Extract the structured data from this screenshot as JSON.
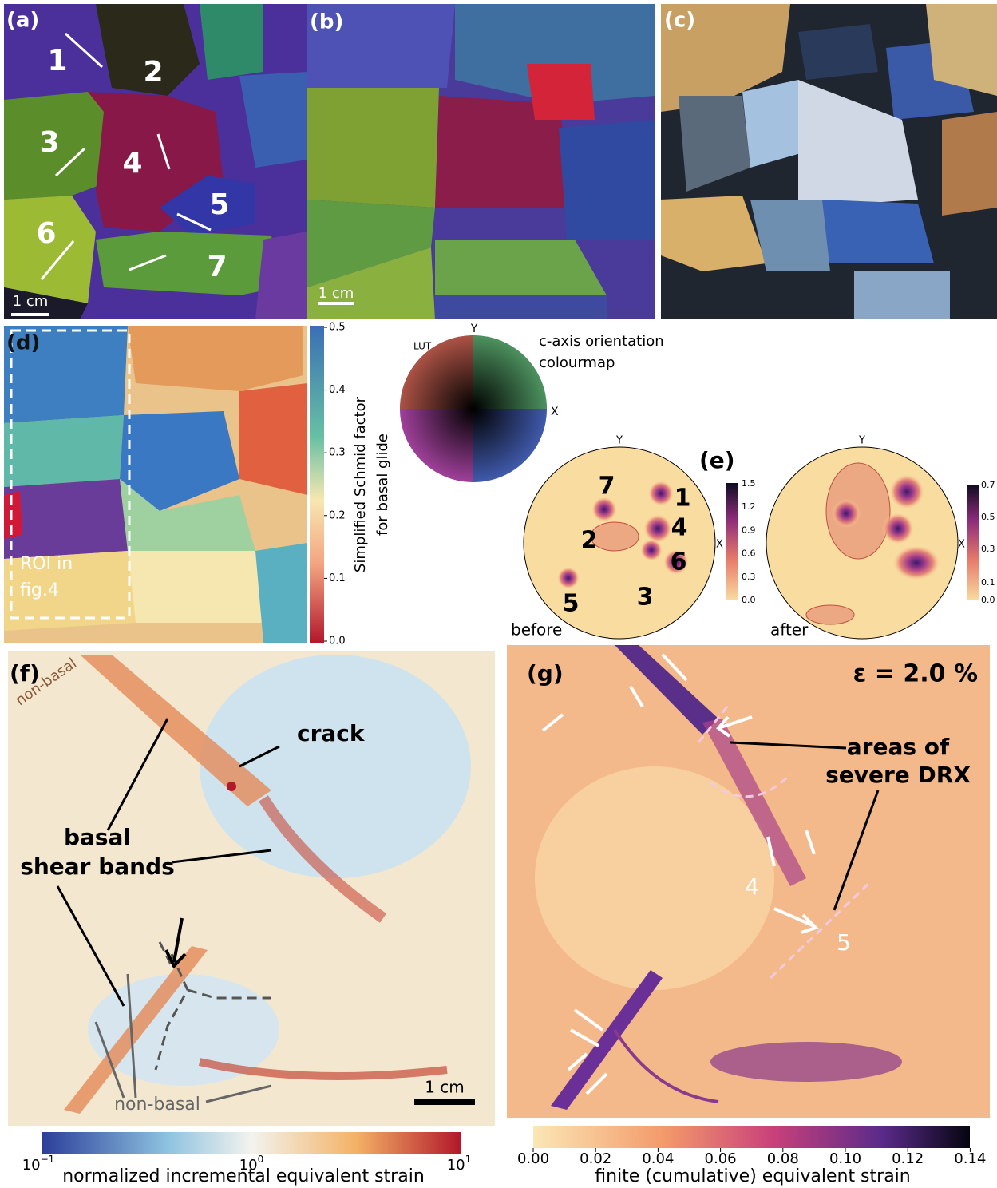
{
  "panels": {
    "a": {
      "label": "(a)",
      "grains": [
        "1",
        "2",
        "3",
        "4",
        "5",
        "6",
        "7"
      ],
      "scale_bar": "1 cm"
    },
    "b": {
      "label": "(b)",
      "scale_bar": "1 cm"
    },
    "c": {
      "label": "(c)"
    },
    "d": {
      "label": "(d)",
      "roi": [
        "ROI in",
        "fig.4"
      ],
      "colorbar": {
        "title": [
          "Simplified Schmid factor",
          "for basal glide"
        ],
        "ticks": [
          "0.5",
          "0.4",
          "0.3",
          "0.2",
          "0.1",
          "0.0"
        ]
      }
    },
    "lut": {
      "label": "LUT",
      "y_axis": "Y",
      "x_axis": "X",
      "title": [
        "c-axis orientation",
        "colourmap"
      ]
    },
    "e": {
      "label": "(e)",
      "before": {
        "caption": "before",
        "y_axis": "Y",
        "x_axis": "X",
        "grains": [
          "7",
          "1",
          "2",
          "4",
          "6",
          "5",
          "3"
        ],
        "colorbar_ticks": [
          "1.5",
          "1.2",
          "0.9",
          "0.6",
          "0.3",
          "0.0"
        ]
      },
      "after": {
        "caption": "after",
        "y_axis": "Y",
        "x_axis": "X",
        "colorbar_ticks": [
          "0.7",
          "0.5",
          "0.3",
          "0.1",
          "0.0"
        ]
      }
    },
    "f": {
      "label": "(f)",
      "annotations": {
        "non_basal_top": "non-basal",
        "crack": "crack",
        "basal": "basal",
        "shear_bands": "shear bands",
        "non_basal_bottom": "non-basal"
      },
      "scale_bar": "1 cm",
      "colorbar": {
        "title": "normalized incremental equivalent strain",
        "ticks": [
          {
            "base": "10",
            "exp": "−1"
          },
          {
            "base": "10",
            "exp": "0"
          },
          {
            "base": "10",
            "exp": "1"
          }
        ]
      }
    },
    "g": {
      "label": "(g)",
      "strain": "ε = 2.0 %",
      "annotations": [
        "areas of",
        "severe DRX"
      ],
      "grains": [
        "4",
        "5"
      ],
      "colorbar": {
        "title": "finite (cumulative) equivalent strain",
        "ticks": [
          "0.00",
          "0.02",
          "0.04",
          "0.06",
          "0.08",
          "0.10",
          "0.12",
          "0.14"
        ]
      }
    }
  }
}
